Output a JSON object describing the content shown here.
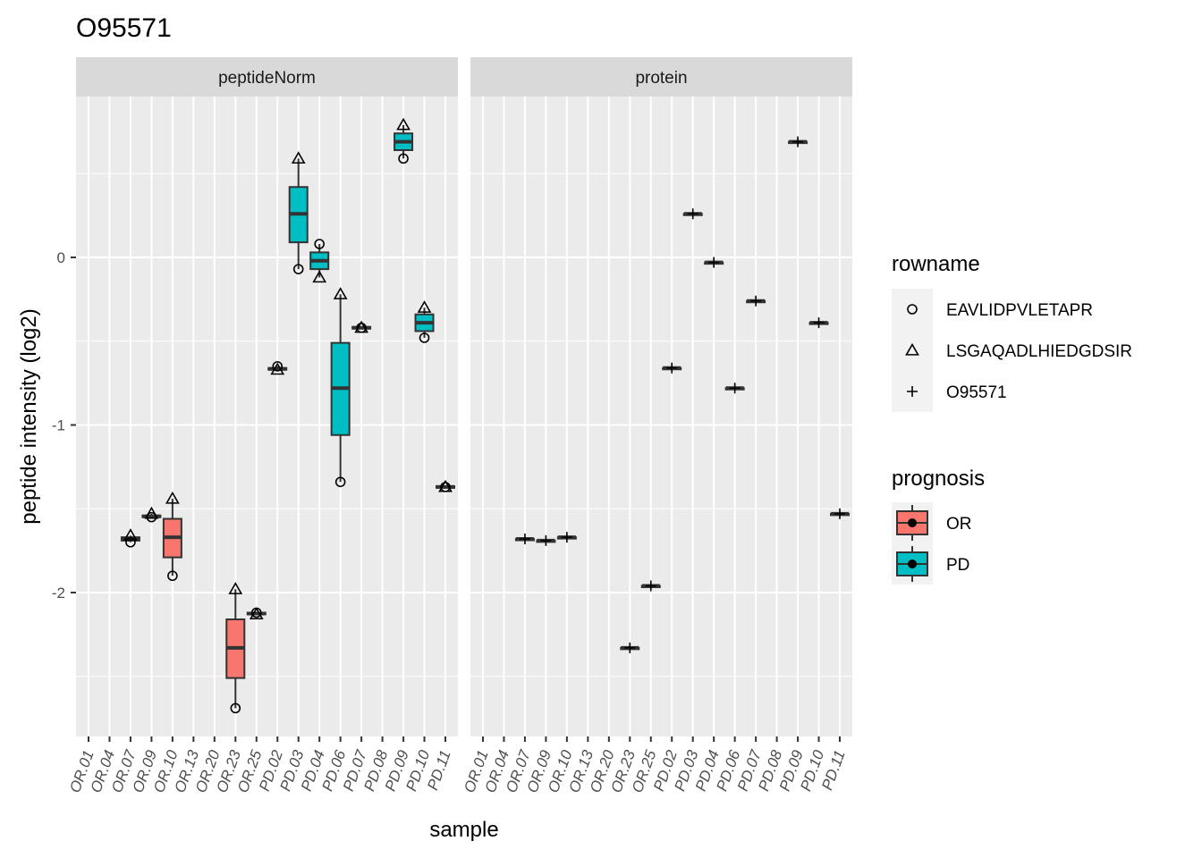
{
  "chart_data": {
    "type": "boxplot",
    "title": "O95571",
    "xlabel": "sample",
    "ylabel": "peptide intensity (log2)",
    "ylim": [
      -2.9,
      1.0
    ],
    "y_ticks": [
      0,
      -1,
      -2
    ],
    "y_tick_labels": [
      "0",
      "-1",
      "-2"
    ],
    "categories": [
      "OR.01",
      "OR.04",
      "OR.07",
      "OR.09",
      "OR.10",
      "OR.13",
      "OR.20",
      "OR.23",
      "OR.25",
      "PD.02",
      "PD.03",
      "PD.04",
      "PD.06",
      "PD.07",
      "PD.08",
      "PD.09",
      "PD.10",
      "PD.11"
    ],
    "grid": true,
    "legend_placement": "right",
    "facets": [
      {
        "name": "peptideNorm",
        "samples": [
          {
            "sample": "OR.07",
            "prognosis": "OR",
            "q1": -1.69,
            "median": -1.68,
            "q3": -1.67,
            "points": [
              {
                "rowname": "EAVLIDPVLETAPR",
                "y": -1.7
              },
              {
                "rowname": "LSGAQADLHIEDGDSIR",
                "y": -1.66
              }
            ]
          },
          {
            "sample": "OR.09",
            "prognosis": "OR",
            "q1": -1.55,
            "median": -1.545,
            "q3": -1.54,
            "points": [
              {
                "rowname": "EAVLIDPVLETAPR",
                "y": -1.55
              },
              {
                "rowname": "LSGAQADLHIEDGDSIR",
                "y": -1.53
              }
            ]
          },
          {
            "sample": "OR.10",
            "prognosis": "OR",
            "q1": -1.79,
            "median": -1.67,
            "q3": -1.56,
            "points": [
              {
                "rowname": "EAVLIDPVLETAPR",
                "y": -1.9
              },
              {
                "rowname": "LSGAQADLHIEDGDSIR",
                "y": -1.44
              }
            ]
          },
          {
            "sample": "OR.23",
            "prognosis": "OR",
            "q1": -2.51,
            "median": -2.33,
            "q3": -2.16,
            "points": [
              {
                "rowname": "EAVLIDPVLETAPR",
                "y": -2.69
              },
              {
                "rowname": "LSGAQADLHIEDGDSIR",
                "y": -1.98
              }
            ]
          },
          {
            "sample": "OR.25",
            "prognosis": "OR",
            "q1": -2.13,
            "median": -2.125,
            "q3": -2.12,
            "points": [
              {
                "rowname": "EAVLIDPVLETAPR",
                "y": -2.12
              },
              {
                "rowname": "LSGAQADLHIEDGDSIR",
                "y": -2.13
              }
            ]
          },
          {
            "sample": "PD.02",
            "prognosis": "PD",
            "q1": -0.67,
            "median": -0.665,
            "q3": -0.66,
            "points": [
              {
                "rowname": "EAVLIDPVLETAPR",
                "y": -0.65
              },
              {
                "rowname": "LSGAQADLHIEDGDSIR",
                "y": -0.67
              }
            ]
          },
          {
            "sample": "PD.03",
            "prognosis": "PD",
            "q1": 0.09,
            "median": 0.26,
            "q3": 0.42,
            "points": [
              {
                "rowname": "EAVLIDPVLETAPR",
                "y": -0.07
              },
              {
                "rowname": "LSGAQADLHIEDGDSIR",
                "y": 0.59
              }
            ]
          },
          {
            "sample": "PD.04",
            "prognosis": "PD",
            "q1": -0.07,
            "median": -0.02,
            "q3": 0.03,
            "points": [
              {
                "rowname": "EAVLIDPVLETAPR",
                "y": 0.08
              },
              {
                "rowname": "LSGAQADLHIEDGDSIR",
                "y": -0.12
              }
            ]
          },
          {
            "sample": "PD.06",
            "prognosis": "PD",
            "q1": -1.06,
            "median": -0.78,
            "q3": -0.51,
            "points": [
              {
                "rowname": "EAVLIDPVLETAPR",
                "y": -1.34
              },
              {
                "rowname": "LSGAQADLHIEDGDSIR",
                "y": -0.22
              }
            ]
          },
          {
            "sample": "PD.07",
            "prognosis": "PD",
            "q1": -0.425,
            "median": -0.42,
            "q3": -0.415,
            "points": [
              {
                "rowname": "EAVLIDPVLETAPR",
                "y": -0.42
              },
              {
                "rowname": "LSGAQADLHIEDGDSIR",
                "y": -0.42
              }
            ]
          },
          {
            "sample": "PD.09",
            "prognosis": "PD",
            "q1": 0.64,
            "median": 0.69,
            "q3": 0.74,
            "points": [
              {
                "rowname": "EAVLIDPVLETAPR",
                "y": 0.59
              },
              {
                "rowname": "LSGAQADLHIEDGDSIR",
                "y": 0.79
              }
            ]
          },
          {
            "sample": "PD.10",
            "prognosis": "PD",
            "q1": -0.44,
            "median": -0.39,
            "q3": -0.34,
            "points": [
              {
                "rowname": "EAVLIDPVLETAPR",
                "y": -0.48
              },
              {
                "rowname": "LSGAQADLHIEDGDSIR",
                "y": -0.3
              }
            ]
          },
          {
            "sample": "PD.11",
            "prognosis": "PD",
            "q1": -1.375,
            "median": -1.37,
            "q3": -1.365,
            "points": [
              {
                "rowname": "EAVLIDPVLETAPR",
                "y": -1.37
              },
              {
                "rowname": "LSGAQADLHIEDGDSIR",
                "y": -1.37
              }
            ]
          }
        ]
      },
      {
        "name": "protein",
        "samples": [
          {
            "sample": "OR.07",
            "prognosis": "OR",
            "q1": -1.68,
            "median": -1.68,
            "q3": -1.68,
            "points": [
              {
                "rowname": "O95571",
                "y": -1.68
              }
            ]
          },
          {
            "sample": "OR.09",
            "prognosis": "OR",
            "q1": -1.69,
            "median": -1.69,
            "q3": -1.69,
            "points": [
              {
                "rowname": "O95571",
                "y": -1.69
              }
            ]
          },
          {
            "sample": "OR.10",
            "prognosis": "OR",
            "q1": -1.67,
            "median": -1.67,
            "q3": -1.67,
            "points": [
              {
                "rowname": "O95571",
                "y": -1.67
              }
            ]
          },
          {
            "sample": "OR.23",
            "prognosis": "OR",
            "q1": -2.33,
            "median": -2.33,
            "q3": -2.33,
            "points": [
              {
                "rowname": "O95571",
                "y": -2.33
              }
            ]
          },
          {
            "sample": "OR.25",
            "prognosis": "OR",
            "q1": -1.96,
            "median": -1.96,
            "q3": -1.96,
            "points": [
              {
                "rowname": "O95571",
                "y": -1.96
              }
            ]
          },
          {
            "sample": "PD.02",
            "prognosis": "PD",
            "q1": -0.66,
            "median": -0.66,
            "q3": -0.66,
            "points": [
              {
                "rowname": "O95571",
                "y": -0.66
              }
            ]
          },
          {
            "sample": "PD.03",
            "prognosis": "PD",
            "q1": 0.26,
            "median": 0.26,
            "q3": 0.26,
            "points": [
              {
                "rowname": "O95571",
                "y": 0.26
              }
            ]
          },
          {
            "sample": "PD.04",
            "prognosis": "PD",
            "q1": -0.03,
            "median": -0.03,
            "q3": -0.03,
            "points": [
              {
                "rowname": "O95571",
                "y": -0.03
              }
            ]
          },
          {
            "sample": "PD.06",
            "prognosis": "PD",
            "q1": -0.78,
            "median": -0.78,
            "q3": -0.78,
            "points": [
              {
                "rowname": "O95571",
                "y": -0.78
              }
            ]
          },
          {
            "sample": "PD.07",
            "prognosis": "PD",
            "q1": -0.26,
            "median": -0.26,
            "q3": -0.26,
            "points": [
              {
                "rowname": "O95571",
                "y": -0.26
              }
            ]
          },
          {
            "sample": "PD.09",
            "prognosis": "PD",
            "q1": 0.69,
            "median": 0.69,
            "q3": 0.69,
            "points": [
              {
                "rowname": "O95571",
                "y": 0.69
              }
            ]
          },
          {
            "sample": "PD.10",
            "prognosis": "PD",
            "q1": -0.39,
            "median": -0.39,
            "q3": -0.39,
            "points": [
              {
                "rowname": "O95571",
                "y": -0.39
              }
            ]
          },
          {
            "sample": "PD.11",
            "prognosis": "PD",
            "q1": -1.53,
            "median": -1.53,
            "q3": -1.53,
            "points": [
              {
                "rowname": "O95571",
                "y": -1.53
              }
            ]
          }
        ]
      }
    ],
    "legends": {
      "rowname": {
        "title": "rowname",
        "items": [
          {
            "label": "EAVLIDPVLETAPR",
            "shape": "circle"
          },
          {
            "label": "LSGAQADLHIEDGDSIR",
            "shape": "triangle"
          },
          {
            "label": "O95571",
            "shape": "plus"
          }
        ]
      },
      "prognosis": {
        "title": "prognosis",
        "items": [
          {
            "label": "OR",
            "color": "#F8766D"
          },
          {
            "label": "PD",
            "color": "#00BFC4"
          }
        ]
      }
    }
  }
}
